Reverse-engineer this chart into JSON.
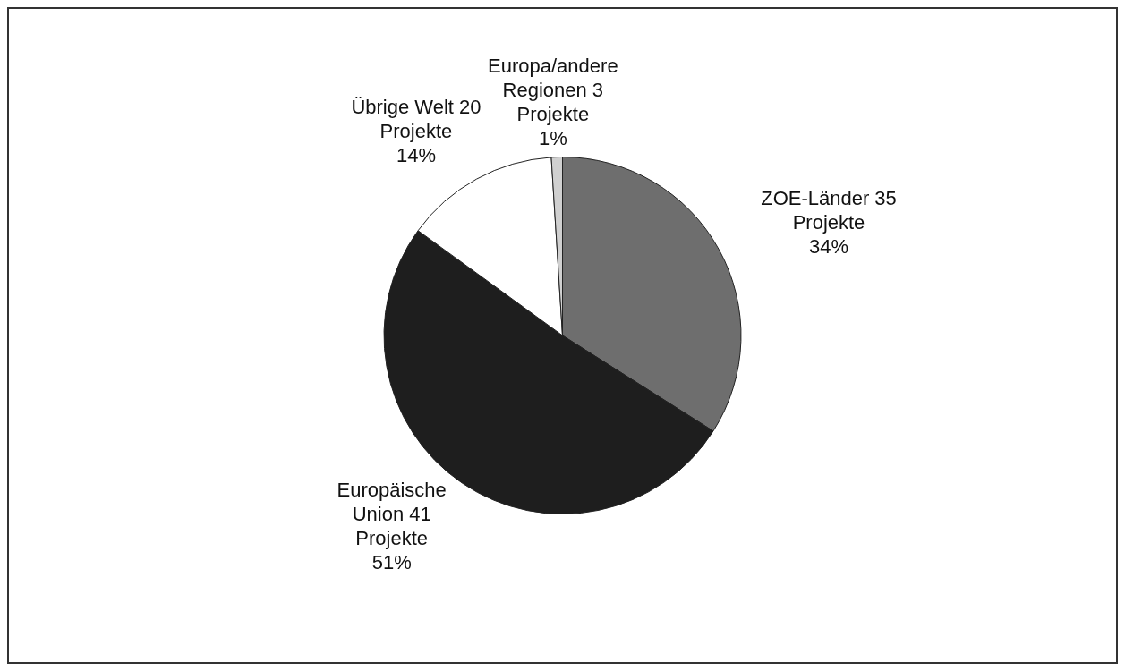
{
  "chart_data": {
    "type": "pie",
    "categories": [
      "ZOE-Länder 35 Projekte",
      "Europäische Union 41 Projekte",
      "Übrige Welt 20 Projekte",
      "Europa/andere Regionen 3 Projekte"
    ],
    "values": [
      34,
      51,
      14,
      1
    ],
    "colors": [
      "#6e6e6e",
      "#1e1e1e",
      "#ffffff",
      "#d0d0d0"
    ],
    "value_labels": [
      "34%",
      "51%",
      "14%",
      "1%"
    ],
    "legend": false
  }
}
